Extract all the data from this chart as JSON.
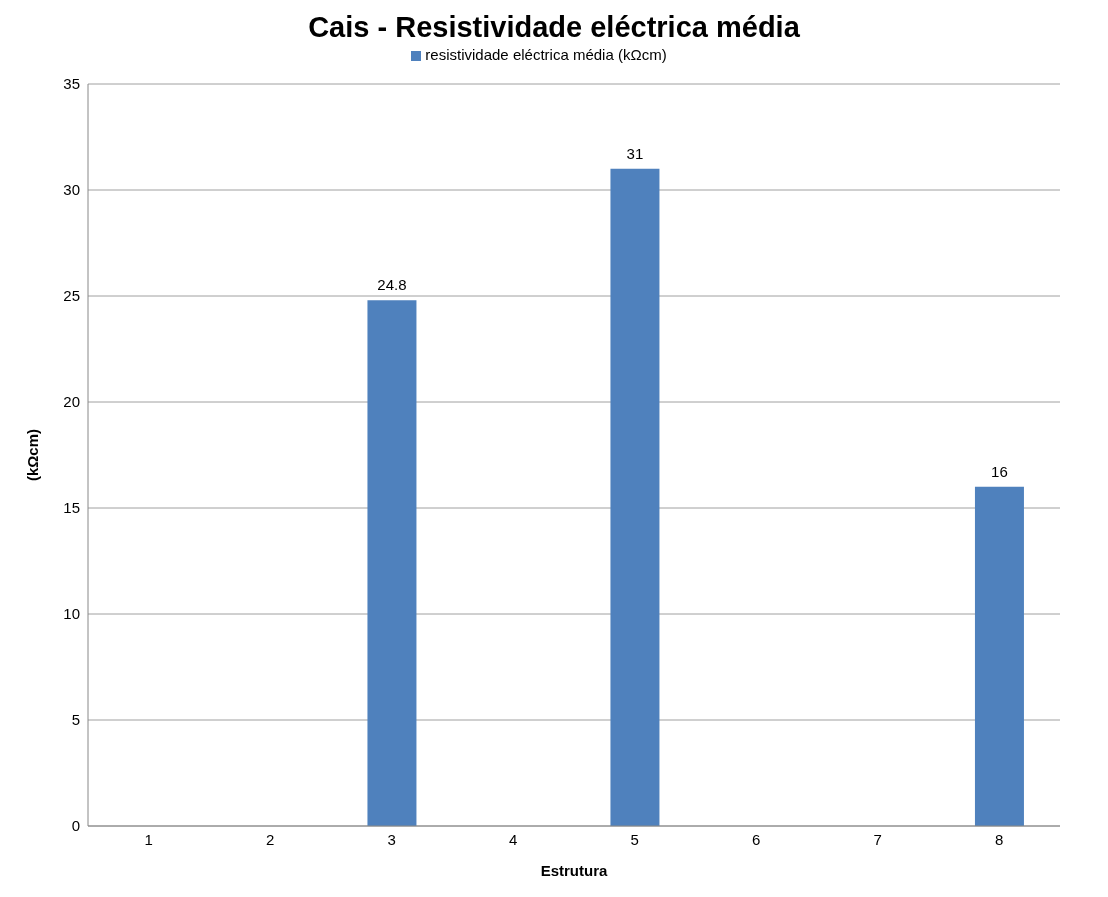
{
  "chart_data": {
    "type": "bar",
    "title": "Cais - Resistividade eléctrica média",
    "xlabel": "Estrutura",
    "ylabel": "(kΩcm)",
    "categories": [
      "1",
      "2",
      "3",
      "4",
      "5",
      "6",
      "7",
      "8"
    ],
    "series": [
      {
        "name": "resistividade eléctrica média (kΩcm)",
        "color": "#4f81bd",
        "values": [
          null,
          null,
          24.8,
          null,
          31,
          null,
          null,
          16
        ]
      }
    ],
    "ylim": [
      0,
      35
    ],
    "yticks": [
      0,
      5,
      10,
      15,
      20,
      25,
      30,
      35
    ],
    "grid": "y",
    "legend": "top",
    "data_labels": true
  }
}
